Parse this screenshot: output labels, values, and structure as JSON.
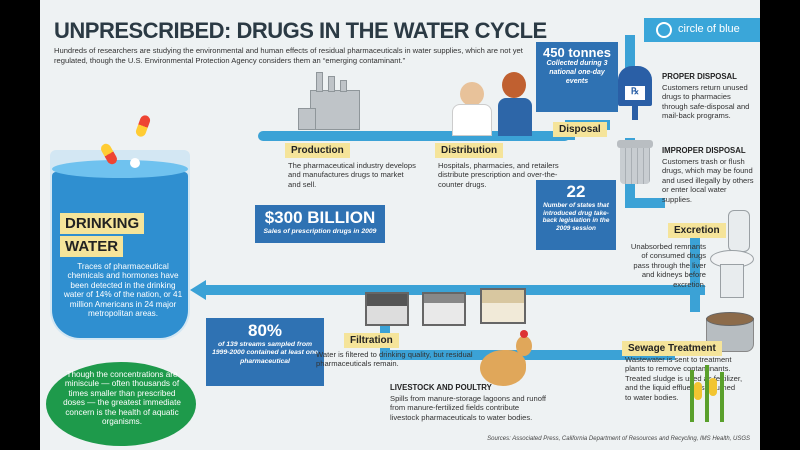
{
  "title": "UNPRESCRIBED: DRUGS IN THE WATER CYCLE",
  "intro": "Hundreds of researchers are studying the environmental and human effects of residual pharmaceuticals in water supplies, which are not yet regulated, though the U.S. Environmental Protection Agency considers them an “emerging contaminant.”",
  "brand": "circle of blue",
  "drinking_water": {
    "label_line1": "DRINKING",
    "label_line2": "WATER",
    "text": "Traces of pharmaceutical chemicals and hormones have been detected in the drinking water of 14% of the nation, or 41 million Americans in 24 major metropolitan areas."
  },
  "production": {
    "label": "Production",
    "text": "The pharmaceutical industry develops and manufactures drugs to market and sell."
  },
  "distribution": {
    "label": "Distribution",
    "text": "Hospitals, pharmacies, and retailers distribute prescription and over-the-counter drugs."
  },
  "sales": {
    "value": "$300 BILLION",
    "caption": "Sales of prescription drugs in 2009"
  },
  "tonnes": {
    "value": "450 tonnes",
    "caption": "Collected during 3 national one-day events"
  },
  "disposal": {
    "label": "Disposal"
  },
  "proper_disposal": {
    "heading": "PROPER DISPOSAL",
    "text": "Customers return unused drugs to pharmacies through safe-disposal and mail-back programs."
  },
  "improper_disposal": {
    "heading": "IMPROPER DISPOSAL",
    "text": "Customers trash or flush drugs, which may be found and used illegally by others or enter local water supplies."
  },
  "states": {
    "value": "22",
    "caption": "Number of states that introduced drug take-back legislation in the 2009 session"
  },
  "excretion": {
    "label": "Excretion",
    "text": "Unabsorbed remnants of consumed drugs pass through the liver and kidneys before excretion."
  },
  "streams": {
    "value": "80%",
    "caption": "of 139 streams sampled from 1999-2000 contained at least one pharmaceutical"
  },
  "filtration": {
    "label": "Filtration",
    "text": "Water is filtered to drinking quality, but residual pharmaceuticals remain."
  },
  "sewage": {
    "label": "Sewage Treatment",
    "text": "Wastewater is sent to treatment plants to remove contaminants. Treated sludge is used as fertilizer, and the liquid effluent is returned to water bodies."
  },
  "livestock": {
    "heading": "LIVESTOCK AND POULTRY",
    "text": "Spills from manure-storage lagoons and runoff from manure-fertilized fields contribute livestock pharmaceuticals to water bodies."
  },
  "concern": "Though the concentrations are miniscule — often thousands of times smaller than prescribed doses — the greatest immediate concern is the health of aquatic organisms.",
  "sources": "Sources: Associated Press, California Department of Resources and Recycling, IMS Health, USGS",
  "colors": {
    "pipe": "#3ba2d6",
    "box": "#2f72b3",
    "label": "#f5e49a",
    "concern": "#1e9a4b"
  },
  "icons": [
    "factory-icon",
    "pharmacist-icon",
    "mailbox-icon",
    "trash-can-icon",
    "toilet-icon",
    "water-glass-icon",
    "filter-tank-icon",
    "sewage-tank-icon",
    "chicken-icon",
    "corn-icon"
  ]
}
